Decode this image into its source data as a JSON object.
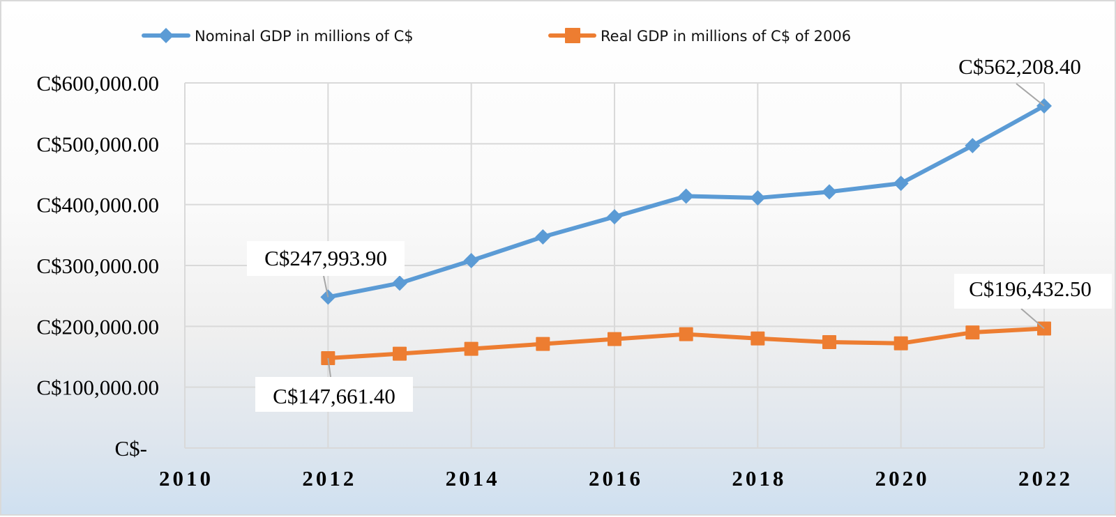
{
  "chart_data": {
    "type": "line",
    "title": "",
    "xlabel": "",
    "ylabel": "",
    "xlim": [
      2010,
      2022
    ],
    "ylim": [
      0,
      600000
    ],
    "grid": true,
    "legend_position": "top",
    "x_ticks": [
      "2010",
      "2012",
      "2014",
      "2016",
      "2018",
      "2020",
      "2022"
    ],
    "x_tick_values": [
      2010,
      2012,
      2014,
      2016,
      2018,
      2020,
      2022
    ],
    "y_ticks": [
      "C$-",
      "C$100,000.00",
      "C$200,000.00",
      "C$300,000.00",
      "C$400,000.00",
      "C$500,000.00",
      "C$600,000.00"
    ],
    "y_tick_values": [
      0,
      100000,
      200000,
      300000,
      400000,
      500000,
      600000
    ],
    "x": [
      2012,
      2013,
      2014,
      2015,
      2016,
      2017,
      2018,
      2019,
      2020,
      2021,
      2022
    ],
    "series": [
      {
        "name": "Nominal GDP in millions of C$",
        "color": "#5b9bd5",
        "marker": "diamond",
        "values": [
          247993.9,
          271000,
          308000,
          347000,
          380000,
          414000,
          411000,
          421000,
          435000,
          497000,
          562208.4
        ]
      },
      {
        "name": "Real GDP in millions of C$ of 2006",
        "color": "#ed7d31",
        "marker": "square",
        "values": [
          147661.4,
          155000,
          163000,
          171000,
          179000,
          187000,
          180000,
          174000,
          172000,
          190000,
          196432.5
        ]
      }
    ],
    "annotations": [
      {
        "series": 0,
        "x": 2012,
        "text": "C$247,993.90"
      },
      {
        "series": 0,
        "x": 2022,
        "text": "C$562,208.40"
      },
      {
        "series": 1,
        "x": 2012,
        "text": "C$147,661.40"
      },
      {
        "series": 1,
        "x": 2022,
        "text": "C$196,432.50"
      }
    ]
  }
}
